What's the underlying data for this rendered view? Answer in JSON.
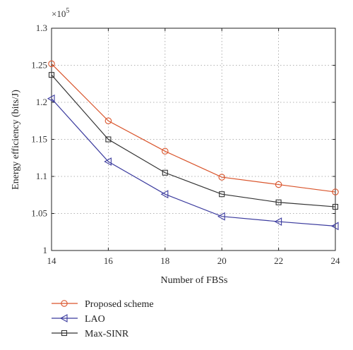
{
  "chart_data": {
    "type": "line",
    "xlabel": "Number of FBSs",
    "ylabel": "Energy efficiency (bits/J)",
    "y_multiplier_label": "×10",
    "y_multiplier_exp": "5",
    "x": [
      14,
      16,
      18,
      20,
      22,
      24
    ],
    "x_ticks": [
      "14",
      "16",
      "18",
      "20",
      "22",
      "24"
    ],
    "xlim": [
      14,
      24
    ],
    "y_ticks": [
      "1",
      "1.05",
      "1.1",
      "1.15",
      "1.2",
      "1.25",
      "1.3"
    ],
    "y_tick_values": [
      1.0,
      1.05,
      1.1,
      1.15,
      1.2,
      1.25,
      1.3
    ],
    "ylim": [
      1.0,
      1.3
    ],
    "grid": true,
    "legend_position": "bottom",
    "series": [
      {
        "name": "Proposed scheme",
        "marker": "circle",
        "color": "#d9542b",
        "values": [
          1.252,
          1.175,
          1.134,
          1.099,
          1.089,
          1.079
        ]
      },
      {
        "name": "LAO",
        "marker": "triangle-left",
        "color": "#3b3b9e",
        "values": [
          1.205,
          1.12,
          1.076,
          1.046,
          1.039,
          1.033
        ]
      },
      {
        "name": "Max-SINR",
        "marker": "square",
        "color": "#333333",
        "values": [
          1.237,
          1.15,
          1.105,
          1.076,
          1.065,
          1.059
        ]
      }
    ]
  }
}
